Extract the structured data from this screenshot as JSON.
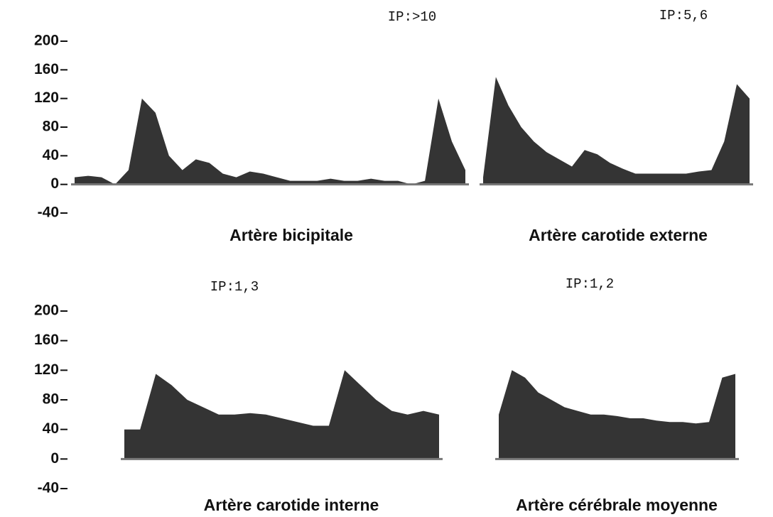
{
  "chart_data": [
    {
      "type": "area",
      "title": "Artère bicipitale",
      "annotation": "IP:>10",
      "color": "#111111",
      "values": [
        10,
        12,
        10,
        0,
        20,
        120,
        100,
        40,
        20,
        35,
        30,
        15,
        10,
        18,
        15,
        10,
        5,
        5,
        5,
        8,
        5,
        5,
        8,
        5,
        5,
        0,
        5,
        120,
        60,
        20
      ],
      "ylim": [
        -40,
        200
      ],
      "yticks": [
        200,
        160,
        120,
        80,
        40,
        0,
        -40
      ]
    },
    {
      "type": "area",
      "title": "Artère carotide externe",
      "annotation": "IP:5,6",
      "color": "#111111",
      "values": [
        10,
        150,
        110,
        80,
        60,
        45,
        35,
        25,
        48,
        42,
        30,
        22,
        15,
        15,
        15,
        15,
        15,
        18,
        20,
        60,
        140,
        120
      ],
      "ylim": [
        -40,
        200
      ]
    },
    {
      "type": "area",
      "title": "Artère carotide interne",
      "annotation": "IP:1,3",
      "color": "#111111",
      "values": [
        40,
        40,
        115,
        100,
        80,
        70,
        60,
        60,
        62,
        60,
        55,
        50,
        45,
        45,
        120,
        100,
        80,
        65,
        60,
        65,
        60
      ],
      "ylim": [
        -40,
        200
      ],
      "yticks": [
        200,
        160,
        120,
        80,
        40,
        0,
        -40
      ]
    },
    {
      "type": "area",
      "title": "Artère cérébrale moyenne",
      "annotation": "IP:1,2",
      "color": "#111111",
      "values": [
        60,
        120,
        110,
        90,
        80,
        70,
        65,
        60,
        60,
        58,
        55,
        55,
        52,
        50,
        50,
        48,
        50,
        110,
        115
      ],
      "ylim": [
        -40,
        200
      ]
    }
  ]
}
